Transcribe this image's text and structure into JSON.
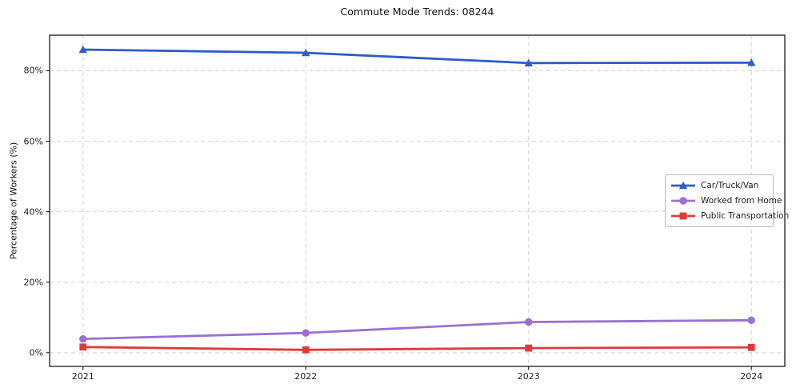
{
  "title": "Commute Mode Trends: 08244",
  "chart_data": {
    "type": "line",
    "title": "Commute Mode Trends: 08244",
    "xlabel": "",
    "ylabel": "Percentage of Workers (%)",
    "x": [
      2021,
      2022,
      2023,
      2024
    ],
    "categories": [
      "2021",
      "2022",
      "2023",
      "2024"
    ],
    "series": [
      {
        "name": "Car/Truck/Van",
        "values": [
          86.0,
          85.1,
          82.2,
          82.3
        ],
        "color": "#2e5ec6",
        "marker": "triangle"
      },
      {
        "name": "Worked from Home",
        "values": [
          3.9,
          5.6,
          8.7,
          9.2
        ],
        "color": "#9a70d2",
        "marker": "circle"
      },
      {
        "name": "Public Transportation",
        "values": [
          1.6,
          0.8,
          1.3,
          1.5
        ],
        "color": "#e03b3b",
        "marker": "square"
      }
    ],
    "ytick_values": [
      0,
      20,
      40,
      60,
      80
    ],
    "yticks": [
      "0%",
      "20%",
      "40%",
      "60%",
      "80%"
    ],
    "ylim": [
      -3.9,
      90.1
    ],
    "xlim": [
      2020.85,
      2024.15
    ],
    "grid": true,
    "grid_style": "dashed",
    "grid_color": "#d2d2d2",
    "spine_color": "#1a1a1a",
    "legend_position": "center right"
  }
}
